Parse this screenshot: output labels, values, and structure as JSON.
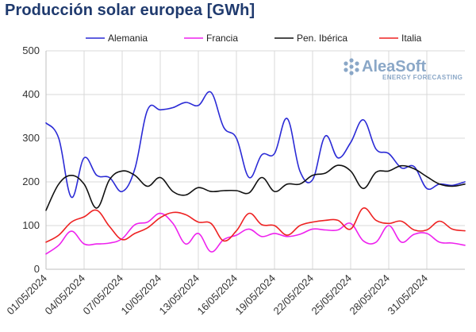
{
  "header": {
    "title": "Producción solar europea [GWh]"
  },
  "watermark": {
    "name": "AleaSoft",
    "tagline": "ENERGY FORECASTING",
    "color": "#8aa7c7"
  },
  "chart_data": {
    "type": "line",
    "title": "Producción solar europea [GWh]",
    "xlabel": "",
    "ylabel": "",
    "ylim": [
      0,
      500
    ],
    "yticks": [
      0,
      100,
      200,
      300,
      400,
      500
    ],
    "grid": true,
    "legend_position": "top",
    "x": [
      "01/05/2024",
      "02/05/2024",
      "03/05/2024",
      "04/05/2024",
      "05/05/2024",
      "06/05/2024",
      "07/05/2024",
      "08/05/2024",
      "09/05/2024",
      "10/05/2024",
      "11/05/2024",
      "12/05/2024",
      "13/05/2024",
      "14/05/2024",
      "15/05/2024",
      "16/05/2024",
      "17/05/2024",
      "18/05/2024",
      "19/05/2024",
      "20/05/2024",
      "21/05/2024",
      "22/05/2024",
      "23/05/2024",
      "24/05/2024",
      "25/05/2024",
      "26/05/2024",
      "27/05/2024",
      "28/05/2024",
      "29/05/2024",
      "30/05/2024",
      "31/05/2024",
      "01/06/2024",
      "02/06/2024",
      "03/06/2024"
    ],
    "xtick_labels": [
      "01/05/2024",
      "04/05/2024",
      "07/05/2024",
      "10/05/2024",
      "13/05/2024",
      "16/05/2024",
      "19/05/2024",
      "22/05/2024",
      "25/05/2024",
      "28/05/2024",
      "31/05/2024"
    ],
    "xtick_every": 3,
    "series": [
      {
        "name": "Alemania",
        "color": "#2b2bd6",
        "values": [
          335,
          300,
          165,
          255,
          215,
          210,
          178,
          230,
          365,
          365,
          370,
          382,
          375,
          405,
          325,
          300,
          210,
          262,
          265,
          345,
          225,
          205,
          305,
          255,
          290,
          342,
          275,
          265,
          232,
          235,
          185,
          195,
          192,
          200
        ]
      },
      {
        "name": "Francia",
        "color": "#ee22ee",
        "values": [
          35,
          55,
          87,
          58,
          58,
          60,
          70,
          102,
          108,
          128,
          105,
          58,
          82,
          40,
          68,
          78,
          92,
          75,
          82,
          75,
          80,
          92,
          90,
          90,
          105,
          65,
          62,
          100,
          62,
          80,
          82,
          62,
          60,
          55
        ]
      },
      {
        "name": "Pen. Ibérica",
        "color": "#111111",
        "values": [
          135,
          195,
          215,
          195,
          140,
          205,
          225,
          215,
          190,
          210,
          178,
          170,
          187,
          178,
          180,
          180,
          175,
          210,
          178,
          195,
          195,
          215,
          220,
          238,
          225,
          185,
          222,
          225,
          237,
          230,
          212,
          195,
          190,
          195
        ]
      },
      {
        "name": "Italia",
        "color": "#ee2222",
        "values": [
          62,
          78,
          108,
          120,
          135,
          98,
          68,
          82,
          95,
          118,
          130,
          125,
          108,
          105,
          65,
          88,
          128,
          102,
          100,
          78,
          100,
          108,
          112,
          112,
          92,
          140,
          112,
          105,
          110,
          90,
          90,
          110,
          92,
          88
        ]
      }
    ]
  }
}
